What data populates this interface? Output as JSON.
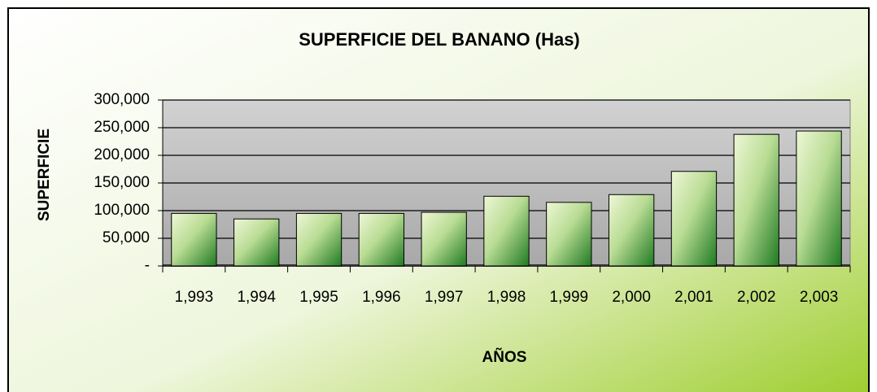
{
  "chart_data": {
    "type": "bar",
    "title": "SUPERFICIE DEL BANANO (Has)",
    "xlabel": "AÑOS",
    "ylabel": "SUPERFICIE",
    "categories": [
      "1,993",
      "1,994",
      "1,995",
      "1,996",
      "1,997",
      "1,998",
      "1,999",
      "2,000",
      "2,001",
      "2,002",
      "2,003"
    ],
    "values": [
      95000,
      85000,
      95000,
      95000,
      97000,
      126000,
      115000,
      129000,
      171000,
      238000,
      244000
    ],
    "color": "#1f7a22",
    "ylim": [
      0,
      300000
    ],
    "yticks": [
      {
        "value": 0,
        "label": "-"
      },
      {
        "value": 50000,
        "label": "50,000"
      },
      {
        "value": 100000,
        "label": "100,000"
      },
      {
        "value": 150000,
        "label": "150,000"
      },
      {
        "value": 200000,
        "label": "200,000"
      },
      {
        "value": 250000,
        "label": "250,000"
      },
      {
        "value": 300000,
        "label": "300,000"
      }
    ],
    "grid": true
  }
}
